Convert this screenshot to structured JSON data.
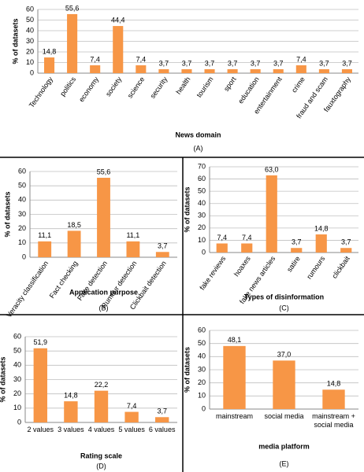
{
  "chart_data": [
    {
      "type": "bar",
      "y_label": "% of datasets",
      "x_label": "News domain",
      "caption": "(A)",
      "categories": [
        "Technology",
        "politics",
        "economy",
        "society",
        "science",
        "security",
        "health",
        "tourism",
        "sport",
        "education",
        "entertainment",
        "crime",
        "fraud and scam",
        "fauxtography"
      ],
      "values": [
        14.8,
        55.6,
        7.4,
        44.4,
        7.4,
        3.7,
        3.7,
        3.7,
        3.7,
        3.7,
        3.7,
        7.4,
        3.7,
        3.7
      ],
      "value_labels": [
        "14,8",
        "55,6",
        "7,4",
        "44,4",
        "7,4",
        "3,7",
        "3,7",
        "3,7",
        "3,7",
        "3,7",
        "3,7",
        "7,4",
        "3,7",
        "3,7"
      ],
      "color": "#f79646",
      "ylim": [
        0,
        60
      ],
      "yticks": [
        0,
        10,
        20,
        30,
        40,
        50,
        60
      ],
      "grid": true
    },
    {
      "type": "bar",
      "y_label": "% of datasets",
      "x_label": "Application purpose",
      "caption": "(B)",
      "categories": [
        "Veracity classification",
        "Fact checking",
        "Fake detection",
        "Rumour detection",
        "Clickbait detection"
      ],
      "values": [
        11.1,
        18.5,
        55.6,
        11.1,
        3.7
      ],
      "value_labels": [
        "11,1",
        "18,5",
        "55,6",
        "11,1",
        "3,7"
      ],
      "color": "#f79646",
      "ylim": [
        0,
        60
      ],
      "yticks": [
        0,
        10,
        20,
        30,
        40,
        50,
        60
      ],
      "grid": true
    },
    {
      "type": "bar",
      "y_label": "% of datasets",
      "x_label": "Types of disinformation",
      "caption": "(C)",
      "categories": [
        "fake reviews",
        "hoaxes",
        "fake news articles",
        "satire",
        "rumours",
        "clickbait"
      ],
      "values": [
        7.4,
        7.4,
        63.0,
        3.7,
        14.8,
        3.7
      ],
      "value_labels": [
        "7,4",
        "7,4",
        "63,0",
        "3,7",
        "14,8",
        "3,7"
      ],
      "color": "#f79646",
      "ylim": [
        0,
        70
      ],
      "yticks": [
        0,
        10,
        20,
        30,
        40,
        50,
        60,
        70
      ],
      "grid": true
    },
    {
      "type": "bar",
      "y_label": "% of datasets",
      "x_label": "Rating scale",
      "caption": "(D)",
      "categories": [
        "2 values",
        "3 values",
        "4 values",
        "5 values",
        "6 values"
      ],
      "values": [
        51.9,
        14.8,
        22.2,
        7.4,
        3.7
      ],
      "value_labels": [
        "51,9",
        "14,8",
        "22,2",
        "7,4",
        "3,7"
      ],
      "color": "#f79646",
      "ylim": [
        0,
        60
      ],
      "yticks": [
        0,
        10,
        20,
        30,
        40,
        50,
        60
      ],
      "grid": true
    },
    {
      "type": "bar",
      "y_label": "% of datasets",
      "x_label": "media platform",
      "caption": "(E)",
      "categories": [
        "mainstream",
        "social media",
        "mainstream + social media"
      ],
      "values": [
        48.1,
        37.0,
        14.8
      ],
      "value_labels": [
        "48,1",
        "37,0",
        "14,8"
      ],
      "color": "#f79646",
      "ylim": [
        0,
        60
      ],
      "yticks": [
        0,
        10,
        20,
        30,
        40,
        50,
        60
      ],
      "grid": true
    }
  ]
}
